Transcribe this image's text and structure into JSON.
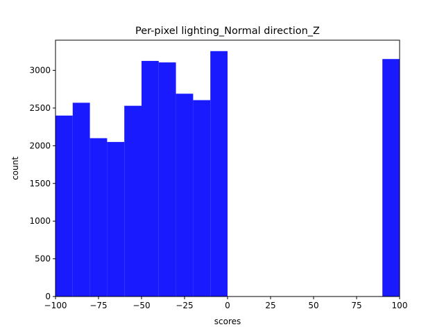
{
  "chart_data": {
    "type": "bar",
    "title": "Per-pixel lighting_Normal direction_Z",
    "xlabel": "scores",
    "ylabel": "count",
    "xlim": [
      -100,
      100
    ],
    "ylim": [
      0,
      3400
    ],
    "xticks": [
      -100,
      -75,
      -50,
      -25,
      0,
      25,
      50,
      75,
      100
    ],
    "xtick_labels": [
      "−100",
      "−75",
      "−50",
      "−25",
      "0",
      "25",
      "50",
      "75",
      "100"
    ],
    "yticks": [
      0,
      500,
      1000,
      1500,
      2000,
      2500,
      3000
    ],
    "ytick_labels": [
      "0",
      "500",
      "1000",
      "1500",
      "2000",
      "2500",
      "3000"
    ],
    "grid": false,
    "bar_color": "#1a1aff",
    "bins": [
      {
        "x0": -100,
        "x1": -90,
        "count": 2400
      },
      {
        "x0": -90,
        "x1": -80,
        "count": 2570
      },
      {
        "x0": -80,
        "x1": -70,
        "count": 2100
      },
      {
        "x0": -70,
        "x1": -60,
        "count": 2050
      },
      {
        "x0": -60,
        "x1": -50,
        "count": 2530
      },
      {
        "x0": -50,
        "x1": -40,
        "count": 3125
      },
      {
        "x0": -40,
        "x1": -30,
        "count": 3105
      },
      {
        "x0": -30,
        "x1": -20,
        "count": 2690
      },
      {
        "x0": -20,
        "x1": -10,
        "count": 2605
      },
      {
        "x0": -10,
        "x1": 0,
        "count": 3255
      },
      {
        "x0": 0,
        "x1": 10,
        "count": 0
      },
      {
        "x0": 10,
        "x1": 20,
        "count": 0
      },
      {
        "x0": 20,
        "x1": 30,
        "count": 0
      },
      {
        "x0": 30,
        "x1": 40,
        "count": 0
      },
      {
        "x0": 40,
        "x1": 50,
        "count": 0
      },
      {
        "x0": 50,
        "x1": 60,
        "count": 0
      },
      {
        "x0": 60,
        "x1": 70,
        "count": 0
      },
      {
        "x0": 70,
        "x1": 80,
        "count": 0
      },
      {
        "x0": 80,
        "x1": 90,
        "count": 0
      },
      {
        "x0": 90,
        "x1": 100,
        "count": 3150
      }
    ]
  }
}
